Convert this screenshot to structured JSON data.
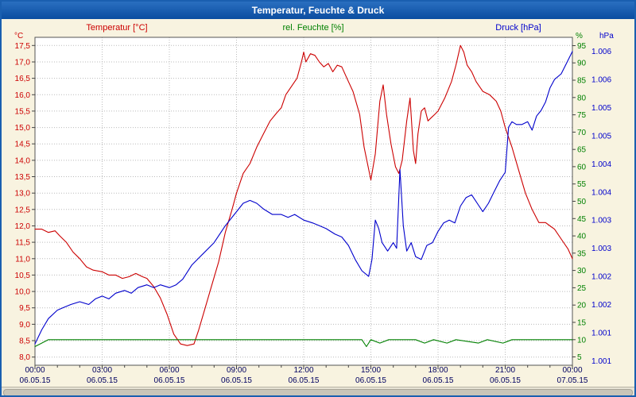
{
  "window": {
    "title": "Temperatur, Feuchte & Druck"
  },
  "header": {
    "temp_label": "Temperatur [°C]",
    "hum_label": "rel. Feuchte [%]",
    "press_label": "Druck [hPa]"
  },
  "colors": {
    "temperature": "#cc0000",
    "humidity": "#008000",
    "pressure": "#0000cc",
    "titlebar": "#0b4da0",
    "background": "#f8f3e0",
    "grid": "#bbbbbb",
    "x_label": "#000060"
  },
  "chart_data": {
    "type": "line",
    "title": "Temperatur, Feuchte & Druck",
    "grid": "dotted",
    "x_axis": {
      "tick_hours": [
        0,
        3,
        6,
        9,
        12,
        15,
        18,
        21,
        24
      ],
      "time_labels": [
        "00:00",
        "03:00",
        "06:00",
        "09:00",
        "12:00",
        "15:00",
        "18:00",
        "21:00",
        "00:00"
      ],
      "date_labels": [
        "06.05.15",
        "06.05.15",
        "06.05.15",
        "06.05.15",
        "06.05.15",
        "06.05.15",
        "06.05.15",
        "06.05.15",
        "07.05.15"
      ]
    },
    "temp_axis": {
      "unit": "°C",
      "color": "#cc0000",
      "min": 7.75,
      "max": 17.75,
      "tick_values": [
        17.5,
        17.0,
        16.5,
        16.0,
        15.5,
        15.0,
        14.5,
        14.0,
        13.5,
        13.0,
        12.5,
        12.0,
        11.5,
        11.0,
        10.5,
        10.0,
        9.5,
        9.0,
        8.5,
        8.0
      ],
      "tick_labels": [
        "17,5",
        "17,0",
        "16,5",
        "16,0",
        "15,5",
        "15,0",
        "14,5",
        "14,0",
        "13,5",
        "13,0",
        "12,5",
        "12,0",
        "11,5",
        "11,0",
        "10,5",
        "10,0",
        "9,5",
        "9,0",
        "8,5",
        "8,0"
      ]
    },
    "hum_axis": {
      "unit": "%",
      "color": "#008000",
      "min": 2.6,
      "max": 97.4,
      "tick_values": [
        95,
        90,
        85,
        80,
        75,
        70,
        65,
        60,
        55,
        50,
        45,
        40,
        35,
        30,
        25,
        20,
        15,
        10,
        5
      ],
      "tick_labels": [
        "95",
        "90",
        "85",
        "80",
        "75",
        "70",
        "65",
        "60",
        "55",
        "50",
        "45",
        "40",
        "35",
        "30",
        "25",
        "20",
        "15",
        "10",
        "5"
      ]
    },
    "press_axis": {
      "unit": "hPa",
      "color": "#0000cc",
      "min": 1000.42,
      "max": 1006.25,
      "tick_values": [
        1006.0,
        1005.5,
        1005.0,
        1004.5,
        1004.0,
        1003.5,
        1003.0,
        1002.5,
        1002.0,
        1001.5,
        1001.0,
        1000.5
      ],
      "tick_labels": [
        "1.006",
        "1.006",
        "1.005",
        "1.005",
        "1.004",
        "1.004",
        "1.003",
        "1.003",
        "1.002",
        "1.002",
        "1.001",
        "1.001"
      ]
    },
    "series": [
      {
        "name": "Temperatur",
        "unit": "°C",
        "axis": "temp",
        "color": "#cc0000",
        "points": [
          [
            0,
            11.9
          ],
          [
            0.3,
            11.9
          ],
          [
            0.6,
            11.8
          ],
          [
            0.9,
            11.85
          ],
          [
            1.1,
            11.7
          ],
          [
            1.4,
            11.5
          ],
          [
            1.7,
            11.2
          ],
          [
            2,
            11.0
          ],
          [
            2.3,
            10.75
          ],
          [
            2.6,
            10.65
          ],
          [
            3,
            10.6
          ],
          [
            3.3,
            10.5
          ],
          [
            3.6,
            10.5
          ],
          [
            3.9,
            10.4
          ],
          [
            4.2,
            10.45
          ],
          [
            4.5,
            10.55
          ],
          [
            4.8,
            10.45
          ],
          [
            5,
            10.4
          ],
          [
            5.3,
            10.15
          ],
          [
            5.6,
            9.8
          ],
          [
            5.9,
            9.3
          ],
          [
            6.2,
            8.7
          ],
          [
            6.5,
            8.4
          ],
          [
            6.8,
            8.35
          ],
          [
            7.1,
            8.4
          ],
          [
            7.3,
            8.8
          ],
          [
            7.6,
            9.5
          ],
          [
            7.9,
            10.2
          ],
          [
            8.2,
            10.9
          ],
          [
            8.5,
            11.8
          ],
          [
            8.8,
            12.5
          ],
          [
            9,
            13.0
          ],
          [
            9.3,
            13.6
          ],
          [
            9.6,
            13.9
          ],
          [
            9.9,
            14.4
          ],
          [
            10.2,
            14.8
          ],
          [
            10.5,
            15.2
          ],
          [
            10.8,
            15.45
          ],
          [
            11,
            15.6
          ],
          [
            11.2,
            16.0
          ],
          [
            11.5,
            16.3
          ],
          [
            11.7,
            16.5
          ],
          [
            11.9,
            17.0
          ],
          [
            12,
            17.3
          ],
          [
            12.1,
            17.0
          ],
          [
            12.3,
            17.25
          ],
          [
            12.5,
            17.2
          ],
          [
            12.7,
            17.0
          ],
          [
            12.9,
            16.85
          ],
          [
            13.1,
            16.95
          ],
          [
            13.3,
            16.7
          ],
          [
            13.5,
            16.9
          ],
          [
            13.7,
            16.85
          ],
          [
            14,
            16.4
          ],
          [
            14.2,
            16.1
          ],
          [
            14.5,
            15.4
          ],
          [
            14.7,
            14.4
          ],
          [
            15,
            13.4
          ],
          [
            15.2,
            14.2
          ],
          [
            15.4,
            15.8
          ],
          [
            15.55,
            16.3
          ],
          [
            15.7,
            15.4
          ],
          [
            15.9,
            14.5
          ],
          [
            16.1,
            13.8
          ],
          [
            16.25,
            13.6
          ],
          [
            16.4,
            14.0
          ],
          [
            16.6,
            15.2
          ],
          [
            16.75,
            15.9
          ],
          [
            16.9,
            14.3
          ],
          [
            17,
            13.9
          ],
          [
            17.1,
            14.8
          ],
          [
            17.25,
            15.5
          ],
          [
            17.4,
            15.6
          ],
          [
            17.55,
            15.2
          ],
          [
            17.7,
            15.3
          ],
          [
            17.85,
            15.4
          ],
          [
            18,
            15.5
          ],
          [
            18.3,
            15.9
          ],
          [
            18.6,
            16.4
          ],
          [
            18.8,
            16.9
          ],
          [
            19,
            17.5
          ],
          [
            19.15,
            17.3
          ],
          [
            19.3,
            16.9
          ],
          [
            19.5,
            16.7
          ],
          [
            19.7,
            16.4
          ],
          [
            20,
            16.1
          ],
          [
            20.3,
            16.0
          ],
          [
            20.6,
            15.8
          ],
          [
            20.8,
            15.5
          ],
          [
            21,
            15.0
          ],
          [
            21.3,
            14.4
          ],
          [
            21.6,
            13.7
          ],
          [
            21.9,
            13.0
          ],
          [
            22.2,
            12.5
          ],
          [
            22.5,
            12.1
          ],
          [
            22.8,
            12.1
          ],
          [
            23,
            12.0
          ],
          [
            23.2,
            11.9
          ],
          [
            23.5,
            11.6
          ],
          [
            23.8,
            11.3
          ],
          [
            24,
            11.0
          ]
        ]
      },
      {
        "name": "rel. Feuchte",
        "unit": "%",
        "axis": "hum",
        "color": "#008000",
        "points": [
          [
            0,
            8
          ],
          [
            0.3,
            9
          ],
          [
            0.6,
            10
          ],
          [
            2,
            10
          ],
          [
            3,
            10
          ],
          [
            4,
            10
          ],
          [
            5,
            10
          ],
          [
            6,
            10
          ],
          [
            7,
            10
          ],
          [
            8,
            10
          ],
          [
            9,
            10
          ],
          [
            10,
            10
          ],
          [
            11,
            10
          ],
          [
            12,
            10
          ],
          [
            13,
            10
          ],
          [
            14,
            10
          ],
          [
            14.6,
            10
          ],
          [
            14.8,
            8
          ],
          [
            15,
            10
          ],
          [
            15.4,
            9
          ],
          [
            15.8,
            10
          ],
          [
            17,
            10
          ],
          [
            17.4,
            9
          ],
          [
            17.8,
            10
          ],
          [
            18.4,
            9
          ],
          [
            18.8,
            10
          ],
          [
            19.8,
            9
          ],
          [
            20.2,
            10
          ],
          [
            20.9,
            9
          ],
          [
            21.3,
            10
          ],
          [
            22,
            10
          ],
          [
            23,
            10
          ],
          [
            24,
            10
          ]
        ]
      },
      {
        "name": "Druck",
        "unit": "hPa",
        "axis": "press",
        "color": "#0000cc",
        "points": [
          [
            0,
            1000.8
          ],
          [
            0.3,
            1001.05
          ],
          [
            0.6,
            1001.25
          ],
          [
            1,
            1001.4
          ],
          [
            1.3,
            1001.45
          ],
          [
            1.6,
            1001.5
          ],
          [
            2,
            1001.55
          ],
          [
            2.4,
            1001.5
          ],
          [
            2.7,
            1001.6
          ],
          [
            3,
            1001.65
          ],
          [
            3.3,
            1001.6
          ],
          [
            3.6,
            1001.7
          ],
          [
            4,
            1001.75
          ],
          [
            4.3,
            1001.7
          ],
          [
            4.6,
            1001.8
          ],
          [
            5,
            1001.85
          ],
          [
            5.3,
            1001.8
          ],
          [
            5.6,
            1001.85
          ],
          [
            6,
            1001.8
          ],
          [
            6.3,
            1001.85
          ],
          [
            6.6,
            1001.95
          ],
          [
            7,
            1002.2
          ],
          [
            7.5,
            1002.4
          ],
          [
            8,
            1002.6
          ],
          [
            8.5,
            1002.9
          ],
          [
            9,
            1003.15
          ],
          [
            9.3,
            1003.3
          ],
          [
            9.6,
            1003.35
          ],
          [
            9.9,
            1003.3
          ],
          [
            10.2,
            1003.2
          ],
          [
            10.6,
            1003.1
          ],
          [
            11,
            1003.1
          ],
          [
            11.3,
            1003.05
          ],
          [
            11.6,
            1003.1
          ],
          [
            12,
            1003.0
          ],
          [
            12.4,
            1002.95
          ],
          [
            12.7,
            1002.9
          ],
          [
            13,
            1002.85
          ],
          [
            13.4,
            1002.75
          ],
          [
            13.7,
            1002.7
          ],
          [
            14,
            1002.55
          ],
          [
            14.3,
            1002.3
          ],
          [
            14.6,
            1002.1
          ],
          [
            14.9,
            1002.0
          ],
          [
            15.05,
            1002.3
          ],
          [
            15.2,
            1003.0
          ],
          [
            15.35,
            1002.85
          ],
          [
            15.5,
            1002.6
          ],
          [
            15.75,
            1002.45
          ],
          [
            16,
            1002.6
          ],
          [
            16.15,
            1002.5
          ],
          [
            16.3,
            1003.9
          ],
          [
            16.45,
            1002.9
          ],
          [
            16.6,
            1002.45
          ],
          [
            16.8,
            1002.6
          ],
          [
            17,
            1002.35
          ],
          [
            17.25,
            1002.3
          ],
          [
            17.5,
            1002.55
          ],
          [
            17.75,
            1002.6
          ],
          [
            18,
            1002.8
          ],
          [
            18.25,
            1002.95
          ],
          [
            18.5,
            1003.0
          ],
          [
            18.75,
            1002.95
          ],
          [
            19,
            1003.25
          ],
          [
            19.25,
            1003.4
          ],
          [
            19.5,
            1003.45
          ],
          [
            19.75,
            1003.3
          ],
          [
            20,
            1003.15
          ],
          [
            20.25,
            1003.3
          ],
          [
            20.5,
            1003.5
          ],
          [
            20.75,
            1003.7
          ],
          [
            21,
            1003.85
          ],
          [
            21.15,
            1004.65
          ],
          [
            21.3,
            1004.75
          ],
          [
            21.5,
            1004.7
          ],
          [
            21.75,
            1004.7
          ],
          [
            22,
            1004.75
          ],
          [
            22.2,
            1004.6
          ],
          [
            22.4,
            1004.85
          ],
          [
            22.6,
            1004.95
          ],
          [
            22.8,
            1005.1
          ],
          [
            23,
            1005.35
          ],
          [
            23.2,
            1005.5
          ],
          [
            23.5,
            1005.6
          ],
          [
            23.75,
            1005.8
          ],
          [
            24,
            1006.0
          ]
        ]
      }
    ]
  }
}
